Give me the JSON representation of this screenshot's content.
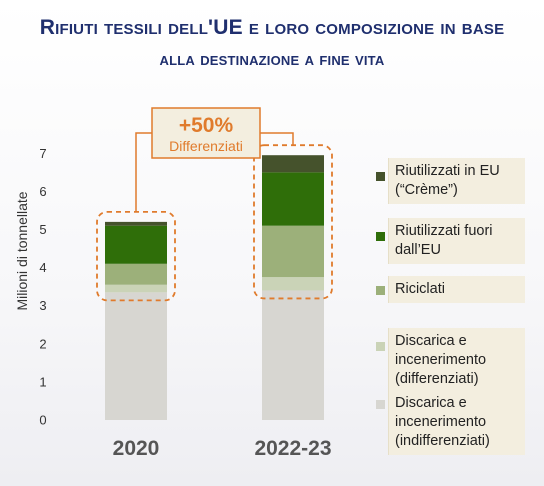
{
  "title": {
    "line1": "Rifiuti tessili dell'UE e loro composizione in base",
    "line2": "alla destinazione a fine vita"
  },
  "colors": {
    "creme": "#45522c",
    "reuse_outside": "#2f6e09",
    "recycled": "#9cb07a",
    "disposal_sorted": "#cad3b7",
    "disposal_unsorted": "#d7d6d1",
    "title": "#1f2f6e",
    "callout": "#e07b2c",
    "legend_bg": "#f3eedf"
  },
  "callout": {
    "value": "+50%",
    "label": "Differenziati"
  },
  "chart_data": {
    "type": "bar",
    "stacked": true,
    "categories": [
      "2020",
      "2022-23"
    ],
    "ylabel": "Milioni di tonnellate",
    "ylim": [
      0,
      7
    ],
    "yticks": [
      0,
      1,
      2,
      3,
      4,
      5,
      6,
      7
    ],
    "grid": false,
    "legend_position": "right",
    "series": [
      {
        "name": "Discarica e incenerimento (indifferenziati)",
        "values": [
          3.35,
          3.4
        ]
      },
      {
        "name": "Discarica e incenerimento (differenziati)",
        "values": [
          0.2,
          0.35
        ]
      },
      {
        "name": "Riciclati",
        "values": [
          0.55,
          1.35
        ]
      },
      {
        "name": "Riutilizzati fuori dall’EU",
        "values": [
          1.0,
          1.4
        ]
      },
      {
        "name": "Riutilizzati in EU (“Crème”)",
        "values": [
          0.1,
          0.45
        ]
      }
    ]
  }
}
